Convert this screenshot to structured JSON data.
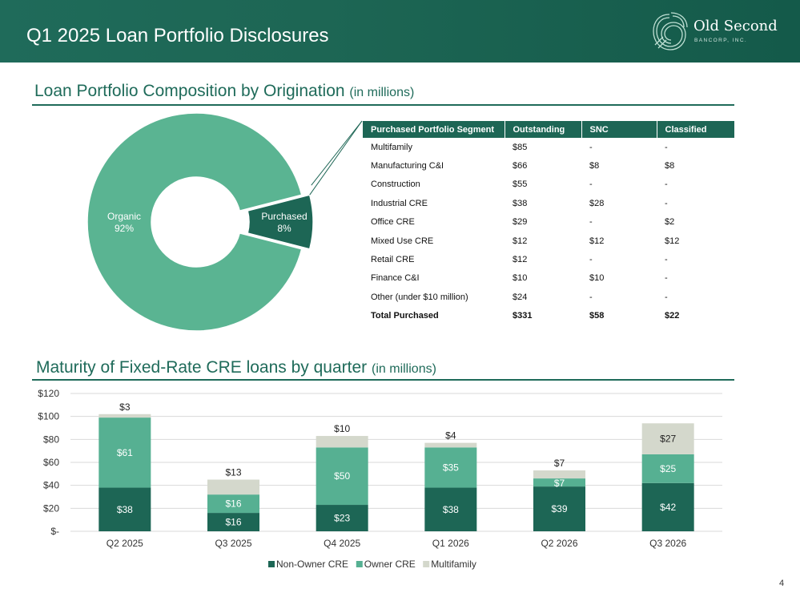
{
  "header": {
    "title": "Q1 2025 Loan Portfolio Disclosures",
    "logo_name": "Old Second",
    "logo_sub": "BANCORP, INC."
  },
  "composition": {
    "title": "Loan Portfolio Composition by Origination",
    "unit": "(in millions)"
  },
  "maturity": {
    "title": "Maturity of Fixed-Rate CRE loans by quarter",
    "unit": "(in millions)"
  },
  "segments_table": {
    "headers": [
      "Purchased Portfolio Segment",
      "Outstanding",
      "SNC",
      "Classified"
    ],
    "rows": [
      [
        "Multifamily",
        "$85",
        "-",
        "-"
      ],
      [
        "Manufacturing C&I",
        "$66",
        "$8",
        "$8"
      ],
      [
        "Construction",
        "$55",
        "-",
        "-"
      ],
      [
        "Industrial CRE",
        "$38",
        "$28",
        "-"
      ],
      [
        "Office CRE",
        "$29",
        "-",
        "$2"
      ],
      [
        "Mixed Use CRE",
        "$12",
        "$12",
        "$12"
      ],
      [
        "Retail CRE",
        "$12",
        "-",
        "-"
      ],
      [
        "Finance C&I",
        "$10",
        "$10",
        "-"
      ],
      [
        "Other (under $10 million)",
        "$24",
        "-",
        "-"
      ]
    ],
    "total": [
      "Total Purchased",
      "$331",
      "$58",
      "$22"
    ]
  },
  "page_number": "4",
  "colors": {
    "dark_green": "#1d6655",
    "mid_green": "#56b092",
    "light_gray": "#d4d8cc",
    "organic_green": "#5ab492"
  },
  "chart_data": [
    {
      "type": "pie",
      "donut": true,
      "slices": [
        {
          "label": "Organic",
          "value": 92,
          "pct_label": "92%",
          "color": "#5ab492"
        },
        {
          "label": "Purchased",
          "value": 8,
          "pct_label": "8%",
          "color": "#1d6655",
          "exploded": true
        }
      ]
    },
    {
      "type": "bar",
      "stacked": true,
      "categories": [
        "Q2 2025",
        "Q3 2025",
        "Q4 2025",
        "Q1 2026",
        "Q2 2026",
        "Q3 2026"
      ],
      "series": [
        {
          "name": "Non-Owner CRE",
          "color": "#1d6655",
          "values": [
            38,
            16,
            23,
            38,
            39,
            42
          ],
          "labels": [
            "$38",
            "$16",
            "$23",
            "$38",
            "$39",
            "$42"
          ]
        },
        {
          "name": "Owner CRE",
          "color": "#56b092",
          "values": [
            61,
            16,
            50,
            35,
            7,
            25
          ],
          "labels": [
            "$61",
            "$16",
            "$50",
            "$35",
            "$7",
            "$25"
          ]
        },
        {
          "name": "Multifamily",
          "color": "#d4d8cc",
          "values": [
            3,
            13,
            10,
            4,
            7,
            27
          ],
          "labels": [
            "$3",
            "$13",
            "$10",
            "$4",
            "$7",
            "$27"
          ]
        }
      ],
      "ylim": [
        0,
        120
      ],
      "yticks": [
        0,
        20,
        40,
        60,
        80,
        100,
        120
      ],
      "ytick_labels": [
        "$-",
        "$20",
        "$40",
        "$60",
        "$80",
        "$100",
        "$120"
      ],
      "grid": true,
      "legend": "bottom"
    }
  ]
}
